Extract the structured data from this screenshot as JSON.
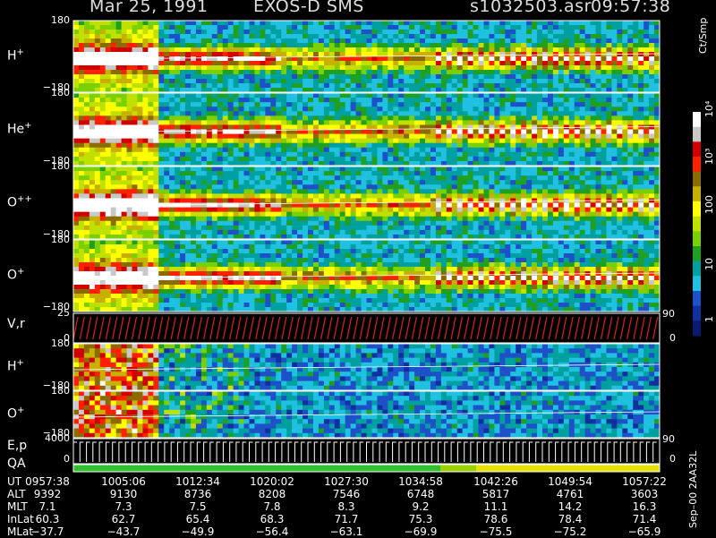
{
  "header": {
    "date": "Mar 25, 1991",
    "instrument": "EXOS-D SMS",
    "file": "s1032503.asr",
    "time": "09:57:38"
  },
  "colorbar": {
    "label": "Ct/Smp",
    "ticks": [
      "10⁴",
      "10³",
      "100",
      "10",
      "1"
    ],
    "colors": [
      "#ffffff",
      "#c8c8c8",
      "#d00000",
      "#ff2000",
      "#8b6a00",
      "#c8b000",
      "#ffff00",
      "#c0e000",
      "#7ad000",
      "#20a020",
      "#00a0a0",
      "#20c0e0",
      "#1e50c8",
      "#1030a0",
      "#0a1a70"
    ]
  },
  "chart_data": {
    "type": "heatmap",
    "panels": [
      {
        "id": "H+",
        "label": "H",
        "sup": "+",
        "ytop": "180",
        "ybot": "−180",
        "ylim": [
          -180,
          180
        ]
      },
      {
        "id": "He+",
        "label": "He",
        "sup": "+",
        "ytop": "180",
        "ybot": "−180",
        "ylim": [
          -180,
          180
        ]
      },
      {
        "id": "O++",
        "label": "O",
        "sup": "++",
        "ytop": "180",
        "ybot": "−180",
        "ylim": [
          -180,
          180
        ]
      },
      {
        "id": "O+",
        "label": "O",
        "sup": "+",
        "ytop": "180",
        "ybot": "−180",
        "ylim": [
          -180,
          180
        ]
      },
      {
        "id": "Vr",
        "label": "V,r",
        "sup": "",
        "ytop": "25",
        "ybot": "0",
        "ylim": [
          0,
          25
        ],
        "right": "90",
        "right2": "0"
      },
      {
        "id": "H+2",
        "label": "H",
        "sup": "+",
        "ytop": "180",
        "ybot": "−180",
        "ylim": [
          -180,
          180
        ]
      },
      {
        "id": "O+2",
        "label": "O",
        "sup": "+",
        "ytop": "180",
        "ybot": "−180",
        "ylim": [
          -180,
          180
        ]
      },
      {
        "id": "Ep",
        "label": "E,p",
        "sup": "",
        "ytop": "4000",
        "ybot": "0",
        "ylim": [
          0,
          4000
        ],
        "right": "90",
        "right2": "0"
      },
      {
        "id": "QA",
        "label": "QA",
        "sup": "",
        "ytop": "",
        "ybot": "",
        "ylim": null
      }
    ],
    "xlabels": [
      "0957:38",
      "1005:06",
      "1012:34",
      "1020:02",
      "1027:30",
      "1034:58",
      "1042:26",
      "1049:54",
      "1057:22"
    ]
  },
  "table": {
    "rows": [
      {
        "label": "UT",
        "values": [
          "0957:38",
          "1005:06",
          "1012:34",
          "1020:02",
          "1027:30",
          "1034:58",
          "1042:26",
          "1049:54",
          "1057:22"
        ]
      },
      {
        "label": "ALT",
        "values": [
          "9392",
          "9130",
          "8736",
          "8208",
          "7546",
          "6748",
          "5817",
          "4761",
          "3603"
        ]
      },
      {
        "label": "MLT",
        "values": [
          "7.1",
          "7.3",
          "7.5",
          "7.8",
          "8.3",
          "9.2",
          "11.1",
          "14.2",
          "16.3"
        ]
      },
      {
        "label": "InLat",
        "values": [
          "60.3",
          "62.7",
          "65.4",
          "68.3",
          "71.7",
          "75.3",
          "78.6",
          "78.4",
          "71.4"
        ]
      },
      {
        "label": "MLat",
        "values": [
          "−37.7",
          "−43.7",
          "−49.9",
          "−56.4",
          "−63.1",
          "−69.9",
          "−75.5",
          "−75.2",
          "−65.9"
        ]
      }
    ]
  },
  "side_label": "Sep–00  2AA32L"
}
